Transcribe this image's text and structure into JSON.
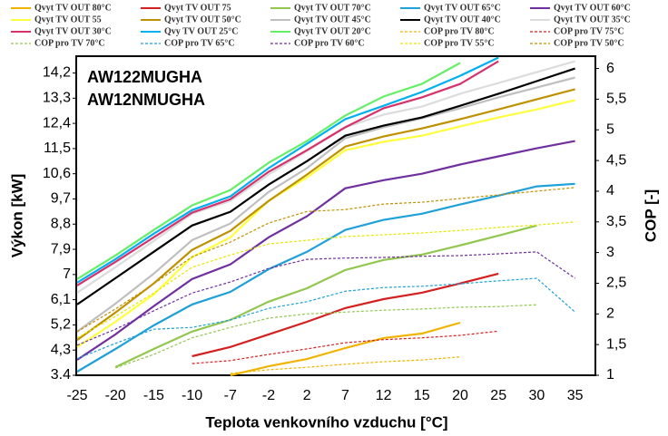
{
  "chart_data": {
    "type": "line",
    "annotations": [
      "AW122MUGHA",
      "AW12NMUGHA"
    ],
    "x_label": "Teplota venkovního vzduchu [°C]",
    "y_label": "Výkon [kW]",
    "y2_label": "COP [-]",
    "categories": [
      "-25",
      "-20",
      "-15",
      "-10",
      "-7",
      "-2",
      "2",
      "7",
      "12",
      "15",
      "20",
      "25",
      "30",
      "35"
    ],
    "ylim": [
      3.4,
      14.8
    ],
    "yticks": [
      3.4,
      {
        "value": 4.3,
        "label": "4,3"
      },
      {
        "value": 5.2,
        "label": "5,2"
      },
      {
        "value": 6.1,
        "label": "6,1"
      },
      7,
      {
        "value": 7.9,
        "label": "7,9"
      },
      {
        "value": 8.8,
        "label": "8,8"
      },
      {
        "value": 9.7,
        "label": "9,7"
      },
      {
        "value": 10.6,
        "label": "10,6"
      },
      {
        "value": 11.5,
        "label": "11,5"
      },
      {
        "value": 12.4,
        "label": "12,4"
      },
      {
        "value": 13.3,
        "label": "13,3"
      },
      {
        "value": 14.2,
        "label": "14,2"
      }
    ],
    "y2lim": [
      1,
      6.2
    ],
    "y2ticks": [
      1,
      {
        "value": 1.5,
        "label": "1,5"
      },
      2,
      {
        "value": 2.5,
        "label": "2,5"
      },
      3,
      {
        "value": 3.5,
        "label": "3,5"
      },
      4,
      {
        "value": 4.5,
        "label": "4,5"
      },
      5,
      {
        "value": 5.5,
        "label": "5,5"
      },
      6
    ],
    "series": [
      {
        "name": "Qvyt TV OUT 80°C",
        "color": "#f0b400",
        "dashed": false,
        "values": [
          null,
          null,
          null,
          null,
          3.4,
          3.72,
          3.98,
          4.37,
          4.73,
          4.89,
          5.28,
          null,
          null,
          null
        ]
      },
      {
        "name": "Qvyt TV OUT 75",
        "color": "#d42020",
        "dashed": false,
        "values": [
          null,
          null,
          null,
          4.08,
          4.41,
          4.86,
          5.31,
          5.8,
          6.12,
          6.35,
          6.68,
          7.03,
          null,
          null
        ]
      },
      {
        "name": "Qvyt TV OUT 70°C",
        "color": "#92c74f",
        "dashed": false,
        "values": [
          null,
          3.69,
          4.34,
          4.96,
          5.38,
          6.03,
          6.51,
          7.16,
          7.52,
          7.71,
          8.04,
          8.39,
          8.75,
          null
        ]
      },
      {
        "name": "Qvyt TV OUT 65°C",
        "color": "#1ea0d8",
        "dashed": false,
        "values": [
          3.53,
          4.34,
          5.18,
          5.93,
          6.38,
          7.19,
          7.81,
          8.59,
          8.95,
          9.17,
          9.5,
          9.82,
          10.15,
          10.24
        ]
      },
      {
        "name": "Qvyt TV OUT 60°C",
        "color": "#7030a0",
        "dashed": false,
        "values": [
          3.95,
          4.86,
          5.87,
          6.84,
          7.36,
          8.33,
          9.08,
          10.08,
          10.37,
          10.6,
          10.93,
          11.22,
          11.51,
          11.77
        ]
      },
      {
        "name": "Qvyt TV OUT 55",
        "color": "#ffff40",
        "dashed": false,
        "values": [
          4.41,
          5.31,
          6.29,
          7.62,
          8.33,
          9.63,
          10.47,
          11.44,
          11.74,
          11.96,
          12.29,
          12.61,
          12.9,
          13.23
        ]
      },
      {
        "name": "Qvyt TV OUT 50°C",
        "color": "#bf9000",
        "dashed": false,
        "values": [
          4.66,
          5.64,
          6.68,
          7.88,
          8.56,
          9.63,
          10.57,
          11.57,
          11.93,
          12.22,
          12.55,
          12.9,
          13.26,
          13.62
        ]
      },
      {
        "name": "Qvyt TV OUT 45°C",
        "color": "#bfbfbf",
        "dashed": false,
        "values": [
          4.96,
          5.96,
          7.03,
          8.23,
          8.82,
          9.95,
          10.8,
          11.87,
          12.26,
          12.58,
          12.94,
          13.33,
          13.68,
          14.04
        ]
      },
      {
        "name": "Qvyt TV OUT 40°C",
        "color": "#000000",
        "dashed": false,
        "values": [
          5.93,
          6.87,
          7.81,
          8.75,
          9.24,
          10.21,
          11.05,
          11.96,
          12.32,
          12.61,
          13.03,
          13.46,
          13.91,
          14.36
        ]
      },
      {
        "name": "Qvyt TV OUT 35°C",
        "color": "#dcdcdc",
        "dashed": false,
        "values": [
          6.35,
          7.26,
          8.2,
          9.17,
          9.63,
          10.57,
          11.41,
          12.26,
          12.71,
          13.0,
          13.46,
          13.84,
          14.23,
          14.62
        ]
      },
      {
        "name": "Qvyt TV OUT 30°C",
        "color": "#d6336c",
        "dashed": false,
        "values": [
          6.61,
          7.45,
          8.33,
          9.21,
          9.69,
          10.67,
          11.44,
          12.26,
          12.94,
          13.33,
          13.81,
          14.62,
          null,
          null
        ]
      },
      {
        "name": "Qvy TV OUT 25°C",
        "color": "#00b0f0",
        "dashed": false,
        "values": [
          6.71,
          7.55,
          8.46,
          9.3,
          9.79,
          10.8,
          11.67,
          12.55,
          13.03,
          13.52,
          14.1,
          14.75,
          null,
          null
        ]
      },
      {
        "name": "Qvyt TV OUT 20°C",
        "color": "#66ee66",
        "dashed": false,
        "values": [
          6.84,
          7.68,
          8.59,
          9.47,
          10.02,
          10.99,
          11.77,
          12.68,
          13.36,
          13.81,
          14.56,
          null,
          null,
          null
        ]
      },
      {
        "name": "COP pro TV 80°C",
        "color": "#f0b400",
        "dashed": true,
        "axis": "y2",
        "values": [
          null,
          null,
          null,
          null,
          1.03,
          1.09,
          1.13,
          1.18,
          1.22,
          1.25,
          1.3,
          null,
          null,
          null
        ]
      },
      {
        "name": "COP pro TV 75°C",
        "color": "#d42020",
        "dashed": true,
        "axis": "y2",
        "values": [
          null,
          null,
          null,
          1.19,
          1.24,
          1.34,
          1.43,
          1.53,
          1.58,
          1.61,
          1.65,
          1.72,
          null,
          null
        ]
      },
      {
        "name": "COP pro TV 70°C",
        "color": "#92c74f",
        "dashed": true,
        "axis": "y2",
        "values": [
          null,
          1.12,
          1.34,
          1.61,
          1.78,
          1.93,
          2.0,
          2.03,
          2.06,
          2.08,
          2.11,
          2.12,
          2.15,
          null
        ]
      },
      {
        "name": "COP pro TV 65°C",
        "color": "#1ea0d8",
        "dashed": true,
        "axis": "y2",
        "values": [
          1.27,
          1.52,
          1.75,
          1.78,
          1.9,
          2.09,
          2.2,
          2.37,
          2.43,
          2.45,
          2.49,
          2.54,
          2.58,
          2.03
        ]
      },
      {
        "name": "COP pro TV 60°C",
        "color": "#7030a0",
        "dashed": true,
        "axis": "y2",
        "values": [
          1.49,
          1.75,
          2.05,
          2.34,
          2.52,
          2.74,
          2.89,
          2.91,
          2.92,
          2.94,
          2.95,
          2.98,
          3.01,
          2.58
        ]
      },
      {
        "name": "COP pro TV 55°C",
        "color": "#e6e600",
        "dashed": true,
        "axis": "y2",
        "values": [
          1.61,
          1.96,
          2.34,
          2.76,
          2.96,
          3.14,
          3.2,
          3.26,
          3.29,
          3.32,
          3.36,
          3.41,
          3.45,
          3.5
        ]
      },
      {
        "name": "COP pro TV 50°C",
        "color": "#bf9000",
        "dashed": true,
        "axis": "y2",
        "values": [
          1.71,
          2.08,
          2.49,
          2.93,
          3.17,
          3.48,
          3.67,
          3.7,
          3.79,
          3.82,
          3.88,
          3.94,
          4.0,
          4.06
        ]
      }
    ]
  }
}
